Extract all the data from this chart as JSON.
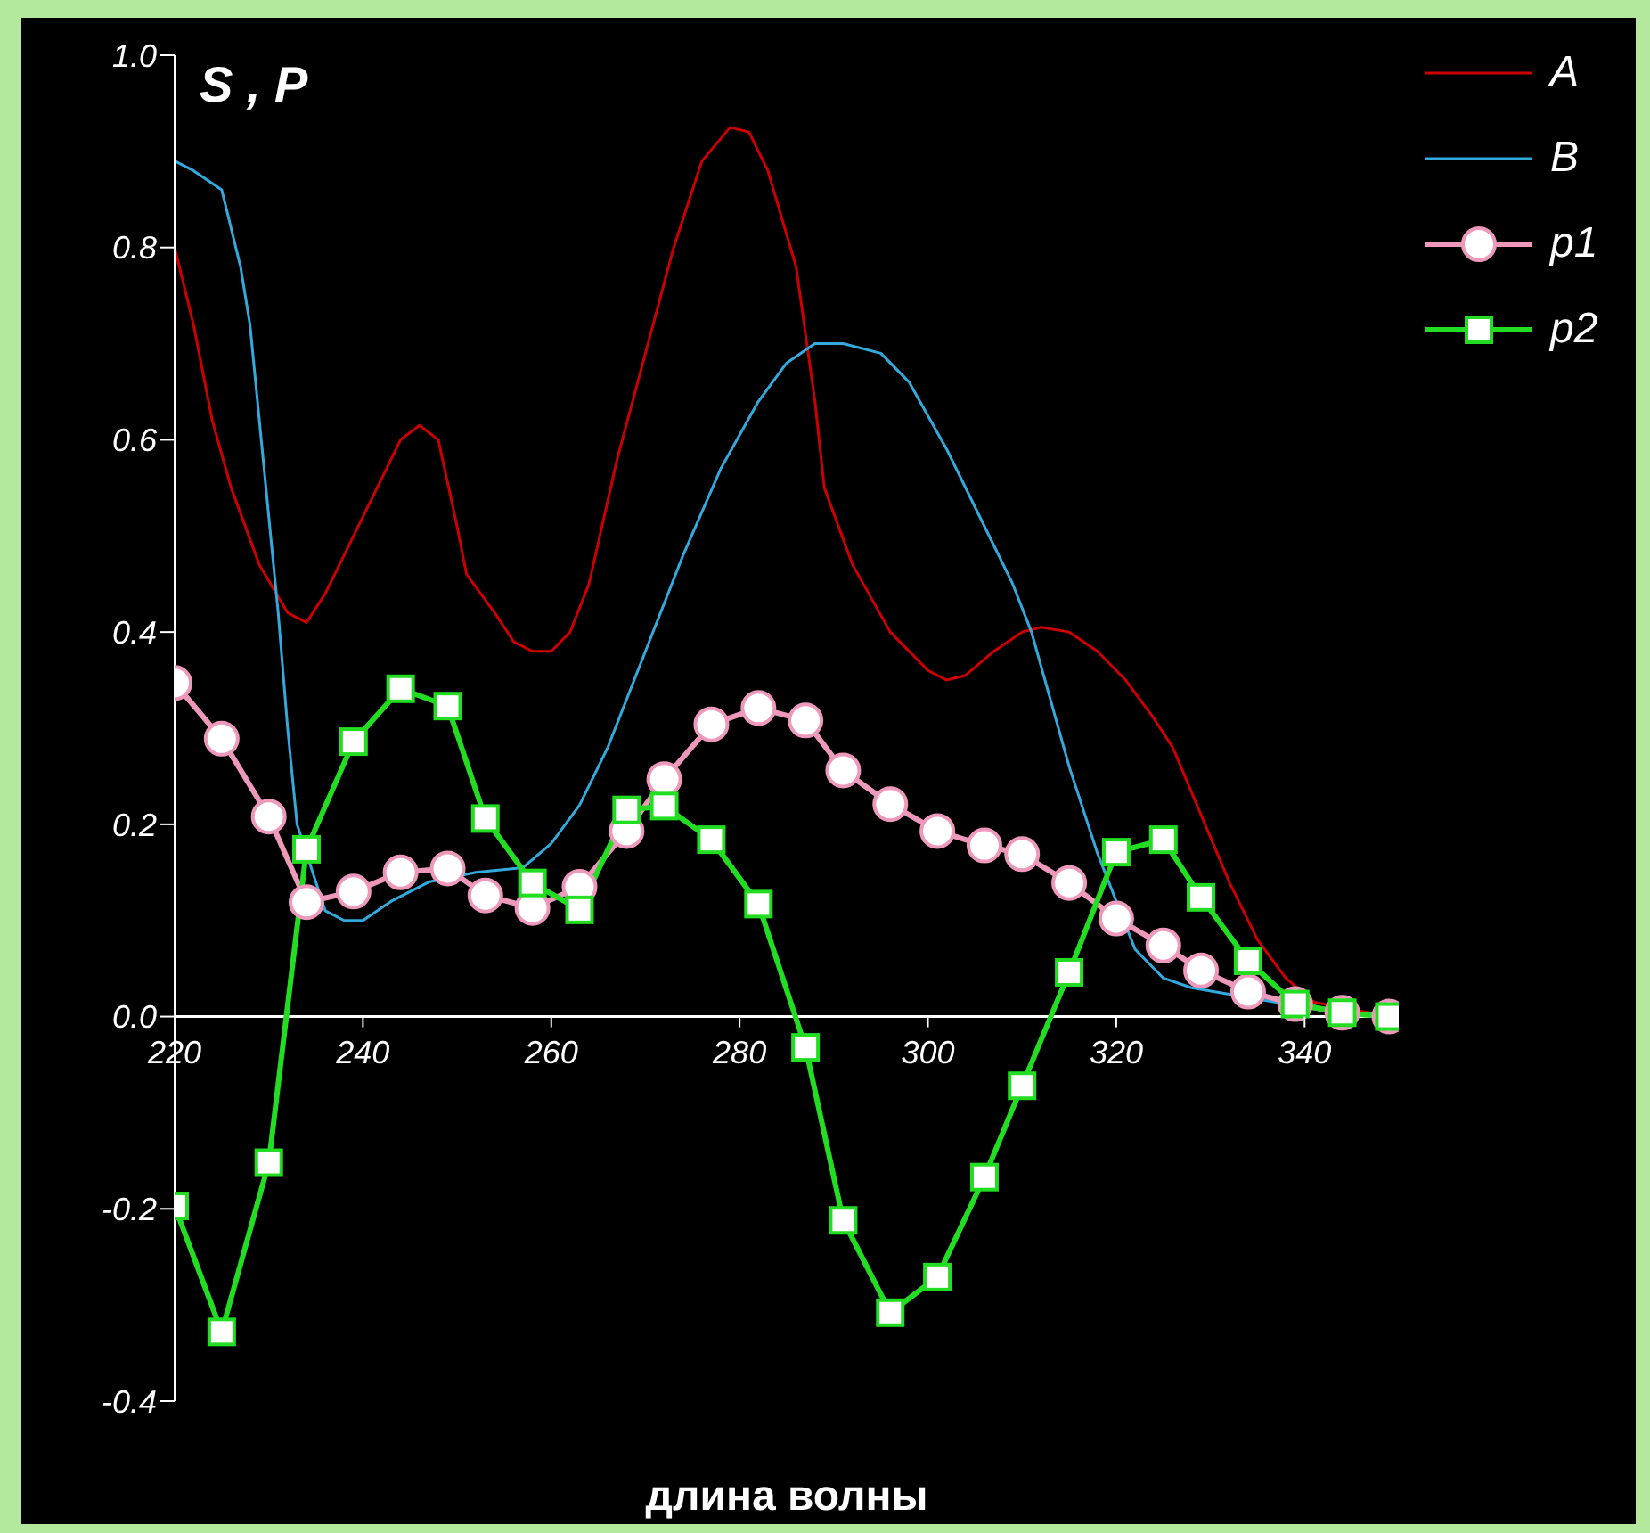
{
  "chart_data": {
    "type": "line",
    "ylabel": "S , P",
    "xlabel": "длина волны",
    "xlim": [
      220,
      350
    ],
    "xticks": [
      220,
      240,
      260,
      280,
      300,
      320,
      340
    ],
    "ylim": [
      -0.4,
      1.0
    ],
    "yticks": [
      -0.4,
      -0.2,
      {
        "value": 0,
        "label": "0.0"
      },
      0.2,
      0.4,
      0.6,
      0.8,
      {
        "value": 1,
        "label": "1.0"
      }
    ],
    "grid": false,
    "legend": "top right",
    "line_style": "solid",
    "series": [
      {
        "name": "A",
        "color": "#cc0000",
        "marker": "none",
        "x": [
          220,
          222,
          224,
          226,
          229,
          232,
          234,
          236,
          239,
          242,
          244,
          246,
          248,
          250,
          251,
          254,
          256,
          258,
          260,
          262,
          264,
          267,
          270,
          273,
          276,
          279,
          281,
          283,
          286,
          288,
          289,
          292,
          296,
          300,
          302,
          304,
          307,
          310,
          312,
          315,
          318,
          321,
          324,
          326,
          329,
          332,
          335,
          338,
          341,
          349
        ],
        "values": [
          0.8,
          0.72,
          0.62,
          0.55,
          0.47,
          0.42,
          0.41,
          0.44,
          0.5,
          0.56,
          0.6,
          0.615,
          0.6,
          0.51,
          0.46,
          0.42,
          0.39,
          0.38,
          0.38,
          0.4,
          0.45,
          0.58,
          0.69,
          0.8,
          0.89,
          0.925,
          0.92,
          0.88,
          0.78,
          0.64,
          0.55,
          0.47,
          0.4,
          0.36,
          0.35,
          0.355,
          0.38,
          0.4,
          0.405,
          0.4,
          0.38,
          0.35,
          0.31,
          0.28,
          0.21,
          0.14,
          0.08,
          0.04,
          0.015,
          0
        ]
      },
      {
        "name": "B",
        "color": "#33aadd",
        "marker": "none",
        "x": [
          220,
          222,
          225,
          227,
          228,
          229,
          230,
          231,
          232,
          233,
          236,
          238,
          240,
          243,
          247,
          252,
          257,
          260,
          263,
          266,
          270,
          274,
          278,
          282,
          285,
          288,
          291,
          295,
          298,
          302,
          306,
          309,
          311,
          313,
          315,
          318,
          322,
          325,
          328,
          344,
          349
        ],
        "values": [
          0.89,
          0.88,
          0.86,
          0.78,
          0.72,
          0.62,
          0.52,
          0.42,
          0.3,
          0.2,
          0.11,
          0.1,
          0.1,
          0.12,
          0.14,
          0.15,
          0.155,
          0.18,
          0.22,
          0.28,
          0.38,
          0.48,
          0.57,
          0.64,
          0.68,
          0.7,
          0.7,
          0.69,
          0.66,
          0.59,
          0.51,
          0.45,
          0.4,
          0.33,
          0.26,
          0.17,
          0.07,
          0.04,
          0.03,
          0.003,
          0
        ]
      },
      {
        "name": "p1",
        "color": "#ee99bb",
        "marker": "circle",
        "x": [
          220,
          225,
          230,
          234,
          239,
          244,
          249,
          253,
          258,
          263,
          268,
          272,
          277,
          282,
          287,
          291,
          296,
          301,
          306,
          310,
          315,
          320,
          325,
          329,
          334,
          339,
          344,
          349
        ],
        "values": [
          0.347,
          0.289,
          0.208,
          0.119,
          0.13,
          0.15,
          0.154,
          0.126,
          0.113,
          0.135,
          0.193,
          0.247,
          0.304,
          0.321,
          0.308,
          0.256,
          0.221,
          0.193,
          0.178,
          0.169,
          0.139,
          0.102,
          0.074,
          0.048,
          0.026,
          0.013,
          0.004,
          0
        ]
      },
      {
        "name": "p2",
        "color": "#22dd22",
        "marker": "square",
        "x": [
          220,
          225,
          230,
          234,
          239,
          244,
          249,
          253,
          258,
          263,
          268,
          272,
          277,
          282,
          287,
          291,
          296,
          301,
          306,
          310,
          315,
          320,
          325,
          329,
          334,
          339,
          344,
          349
        ],
        "values": [
          -0.197,
          -0.328,
          -0.152,
          0.174,
          0.286,
          0.341,
          0.323,
          0.206,
          0.139,
          0.111,
          0.215,
          0.219,
          0.184,
          0.117,
          -0.032,
          -0.212,
          -0.308,
          -0.271,
          -0.167,
          -0.072,
          0.046,
          0.171,
          0.184,
          0.124,
          0.058,
          0.013,
          0.004,
          0
        ]
      }
    ]
  }
}
